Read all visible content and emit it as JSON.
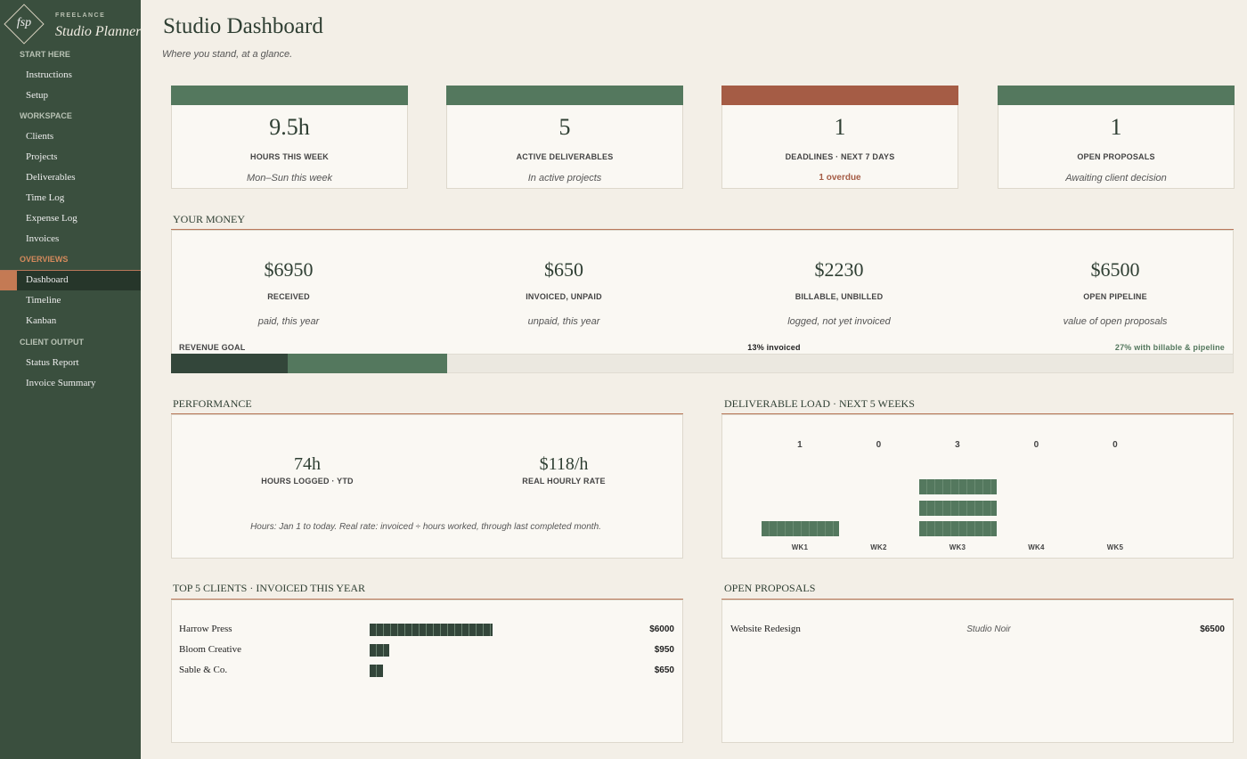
{
  "sidebar": {
    "logo": "fsp",
    "brand_small": "FREELANCE",
    "brand": "Studio Planner",
    "sections": [
      {
        "title": "START HERE",
        "items": [
          {
            "label": "Instructions"
          },
          {
            "label": "Setup"
          }
        ]
      },
      {
        "title": "WORKSPACE",
        "items": [
          {
            "label": "Clients"
          },
          {
            "label": "Projects"
          },
          {
            "label": "Deliverables"
          },
          {
            "label": "Time Log"
          },
          {
            "label": "Expense Log"
          },
          {
            "label": "Invoices"
          }
        ]
      },
      {
        "title": "OVERVIEWS",
        "items": [
          {
            "label": "Dashboard",
            "active": true
          },
          {
            "label": "Timeline"
          },
          {
            "label": "Kanban"
          }
        ]
      },
      {
        "title": "CLIENT OUTPUT",
        "items": [
          {
            "label": "Status Report"
          },
          {
            "label": "Invoice Summary"
          }
        ]
      }
    ]
  },
  "header": {
    "title": "Studio Dashboard",
    "subtitle": "Where you stand, at a glance."
  },
  "stats": [
    {
      "value": "9.5h",
      "label": "HOURS THIS WEEK",
      "note": "Mon–Sun this week",
      "color": "#54785e"
    },
    {
      "value": "5",
      "label": "ACTIVE DELIVERABLES",
      "note": "In active projects",
      "color": "#54785e"
    },
    {
      "value": "1",
      "label": "DEADLINES  ·  NEXT 7 DAYS",
      "note": "1 overdue",
      "color": "#a55c45",
      "alert": true
    },
    {
      "value": "1",
      "label": "OPEN PROPOSALS",
      "note": "Awaiting client decision",
      "color": "#54785e"
    }
  ],
  "money": {
    "heading": "YOUR MONEY",
    "items": [
      {
        "value": "$6950",
        "label": "RECEIVED",
        "note": "paid, this year"
      },
      {
        "value": "$650",
        "label": "INVOICED, UNPAID",
        "note": "unpaid, this year"
      },
      {
        "value": "$2230",
        "label": "BILLABLE, UNBILLED",
        "note": "logged, not yet invoiced"
      },
      {
        "value": "$6500",
        "label": "OPEN PIPELINE",
        "note": "value of open proposals"
      }
    ],
    "goal": {
      "label": "REVENUE GOAL",
      "invoiced": "13% invoiced",
      "projected": "27% with billable & pipeline",
      "xlim": [
        0,
        100
      ],
      "segments": [
        {
          "value": 11,
          "color": "#33463a"
        },
        {
          "value": 15,
          "color": "#54785e"
        }
      ]
    }
  },
  "performance": {
    "heading": "PERFORMANCE",
    "items": [
      {
        "value": "74h",
        "label": "HOURS LOGGED  ·  YTD"
      },
      {
        "value": "$118/h",
        "label": "REAL HOURLY RATE"
      }
    ],
    "note": "Hours: Jan 1 to today.  Real rate: invoiced ÷ hours worked, through last completed month."
  },
  "load": {
    "heading": "DELIVERABLE LOAD  ·  NEXT 5 WEEKS",
    "weeks": [
      {
        "label": "WK1",
        "count": 1
      },
      {
        "label": "WK2",
        "count": 0
      },
      {
        "label": "WK3",
        "count": 3
      },
      {
        "label": "WK4",
        "count": 0
      },
      {
        "label": "WK5",
        "count": 0
      }
    ]
  },
  "clients": {
    "heading": "TOP 5 CLIENTS  ·  INVOICED THIS YEAR",
    "rows": [
      {
        "name": "Harrow Press",
        "amount": {
          "value": 6000,
          "label": "$6000"
        }
      },
      {
        "name": "Bloom Creative",
        "amount": {
          "value": 950,
          "label": "$950"
        }
      },
      {
        "name": "Sable & Co.",
        "amount": {
          "value": 650,
          "label": "$650"
        }
      }
    ]
  },
  "proposals": {
    "heading": "OPEN PROPOSALS",
    "rows": [
      {
        "name": "Website Redesign",
        "client": "Studio Noir",
        "amount": "$6500"
      }
    ]
  }
}
